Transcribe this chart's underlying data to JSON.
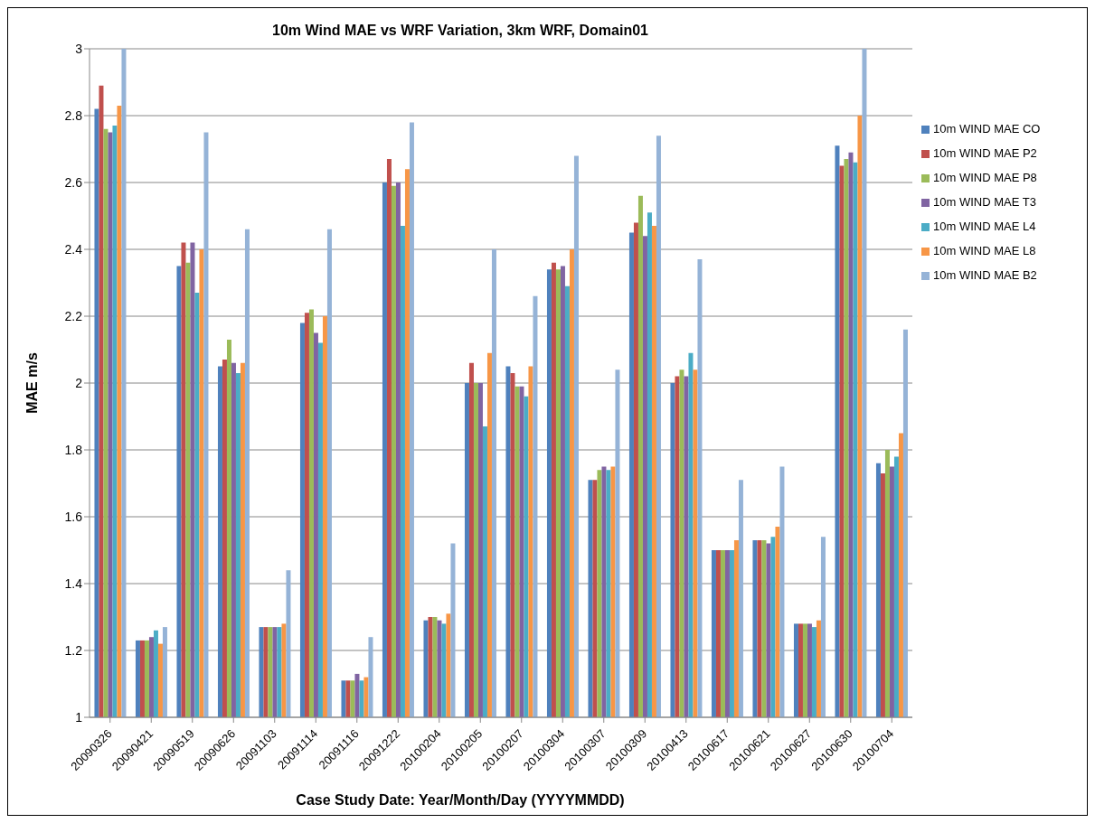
{
  "chart_data": {
    "type": "bar",
    "title": "10m Wind MAE  vs WRF Variation, 3km WRF, Domain01",
    "xlabel": "Case Study Date: Year/Month/Day (YYYYMMDD)",
    "ylabel": "MAE m/s",
    "categories": [
      "20090326",
      "20090421",
      "20090519",
      "20090626",
      "20091103",
      "20091114",
      "20091116",
      "20091222",
      "20100204",
      "20100205",
      "20100207",
      "20100304",
      "20100307",
      "20100309",
      "20100413",
      "20100617",
      "20100621",
      "20100627",
      "20100630",
      "20100704"
    ],
    "series": [
      {
        "name": "10m WIND MAE CO",
        "color": "#4f81bd",
        "values": [
          2.82,
          1.23,
          2.35,
          2.05,
          1.27,
          2.18,
          1.11,
          2.6,
          1.29,
          2.0,
          2.05,
          2.34,
          1.71,
          2.45,
          2.0,
          1.5,
          1.53,
          1.28,
          2.71,
          1.76
        ]
      },
      {
        "name": "10m WIND MAE P2",
        "color": "#c0504d",
        "values": [
          2.89,
          1.23,
          2.42,
          2.07,
          1.27,
          2.21,
          1.11,
          2.67,
          1.3,
          2.06,
          2.03,
          2.36,
          1.71,
          2.48,
          2.02,
          1.5,
          1.53,
          1.28,
          2.65,
          1.73
        ]
      },
      {
        "name": "10m WIND MAE P8",
        "color": "#9bbb59",
        "values": [
          2.76,
          1.23,
          2.36,
          2.13,
          1.27,
          2.22,
          1.11,
          2.59,
          1.3,
          2.0,
          1.99,
          2.34,
          1.74,
          2.56,
          2.04,
          1.5,
          1.53,
          1.28,
          2.67,
          1.8
        ]
      },
      {
        "name": "10m WIND MAE T3",
        "color": "#8064a2",
        "values": [
          2.75,
          1.24,
          2.42,
          2.06,
          1.27,
          2.15,
          1.13,
          2.6,
          1.29,
          2.0,
          1.99,
          2.35,
          1.75,
          2.44,
          2.02,
          1.5,
          1.52,
          1.28,
          2.69,
          1.75
        ]
      },
      {
        "name": "10m WIND MAE L4",
        "color": "#4bacc6",
        "values": [
          2.77,
          1.26,
          2.27,
          2.03,
          1.27,
          2.12,
          1.11,
          2.47,
          1.28,
          1.87,
          1.96,
          2.29,
          1.74,
          2.51,
          2.09,
          1.5,
          1.54,
          1.27,
          2.66,
          1.78
        ]
      },
      {
        "name": "10m WIND MAE L8",
        "color": "#f79646",
        "values": [
          2.83,
          1.22,
          2.4,
          2.06,
          1.28,
          2.2,
          1.12,
          2.64,
          1.31,
          2.09,
          2.05,
          2.4,
          1.75,
          2.47,
          2.04,
          1.53,
          1.57,
          1.29,
          2.8,
          1.85
        ]
      },
      {
        "name": "10m WIND MAE B2",
        "color": "#95b3d7",
        "values": [
          3.0,
          1.27,
          2.75,
          2.46,
          1.44,
          2.46,
          1.24,
          2.78,
          1.52,
          2.4,
          2.26,
          2.68,
          2.04,
          2.74,
          2.37,
          1.71,
          1.75,
          1.54,
          3.0,
          2.16
        ]
      }
    ],
    "ylim": [
      1,
      3
    ],
    "yticks": [
      1,
      1.2,
      1.4,
      1.6,
      1.8,
      2,
      2.2,
      2.4,
      2.6,
      2.8,
      3
    ],
    "grid": "y",
    "legend": "right"
  }
}
